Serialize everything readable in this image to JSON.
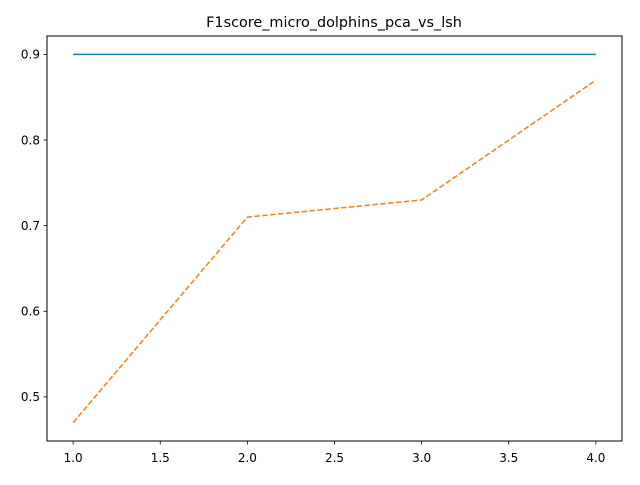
{
  "chart_data": {
    "type": "line",
    "title": "F1score_micro_dolphins_pca_vs_lsh",
    "xlabel": "",
    "ylabel": "",
    "x": [
      1.0,
      2.0,
      3.0,
      4.0
    ],
    "series": [
      {
        "values": [
          0.9,
          0.9,
          0.9,
          0.9
        ],
        "color": "#1f77b4",
        "linestyle": "solid"
      },
      {
        "values": [
          0.47,
          0.71,
          0.73,
          0.87
        ],
        "color": "#ff7f0e",
        "linestyle": "dashed"
      }
    ],
    "xlim": [
      0.85,
      4.15
    ],
    "ylim": [
      0.4485,
      0.9215
    ],
    "xticks": [
      "1.0",
      "1.5",
      "2.0",
      "2.5",
      "3.0",
      "3.5",
      "4.0"
    ],
    "yticks": [
      "0.5",
      "0.6",
      "0.7",
      "0.8",
      "0.9"
    ],
    "grid": false,
    "legend": "none"
  }
}
